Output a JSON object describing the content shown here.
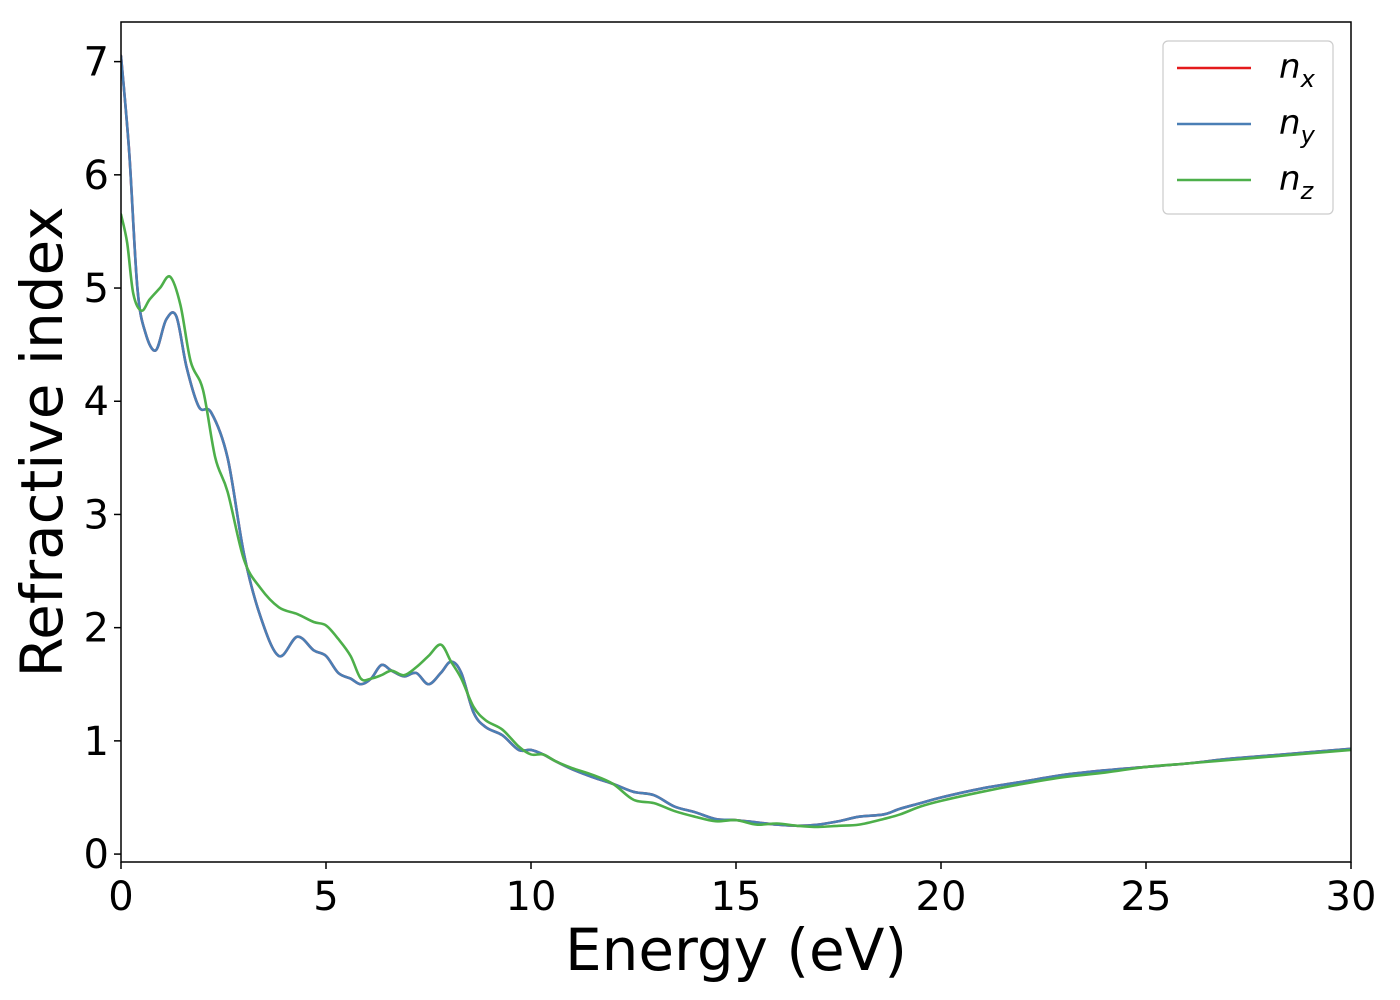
{
  "chart_data": {
    "type": "line",
    "title": "",
    "xlabel": "Energy (eV)",
    "ylabel": "Refractive index",
    "xlim": [
      0,
      30
    ],
    "ylim": [
      -0.07,
      7.35
    ],
    "xticks": [
      0,
      5,
      10,
      15,
      20,
      25,
      30
    ],
    "yticks": [
      0,
      1,
      2,
      3,
      4,
      5,
      6,
      7
    ],
    "grid": false,
    "legend_position": "top-right",
    "series": [
      {
        "name": "n",
        "subscript": "x",
        "color": "#e41a1c",
        "x": [
          0.0,
          0.2,
          0.4,
          0.6,
          0.85,
          1.1,
          1.35,
          1.6,
          1.9,
          2.2,
          2.6,
          3.0,
          3.4,
          3.85,
          4.3,
          4.7,
          5.0,
          5.3,
          5.6,
          5.85,
          6.1,
          6.35,
          6.6,
          6.9,
          7.2,
          7.5,
          7.8,
          8.05,
          8.3,
          8.6,
          8.9,
          9.3,
          9.7,
          10.0,
          10.3,
          10.6,
          11.0,
          11.5,
          12.0,
          12.5,
          13.0,
          13.5,
          14.0,
          14.5,
          15.0,
          15.5,
          16.0,
          16.5,
          17.0,
          17.5,
          18.0,
          18.6,
          19.0,
          19.5,
          20.0,
          21.0,
          22.0,
          23.0,
          24.0,
          25.0,
          26.0,
          27.0,
          28.0,
          29.0,
          30.0
        ],
        "values": [
          7.05,
          6.2,
          5.0,
          4.6,
          4.45,
          4.72,
          4.75,
          4.3,
          3.95,
          3.9,
          3.5,
          2.65,
          2.1,
          1.75,
          1.92,
          1.8,
          1.75,
          1.6,
          1.55,
          1.5,
          1.55,
          1.67,
          1.62,
          1.57,
          1.6,
          1.5,
          1.6,
          1.7,
          1.6,
          1.25,
          1.12,
          1.05,
          0.92,
          0.92,
          0.88,
          0.82,
          0.75,
          0.68,
          0.62,
          0.55,
          0.52,
          0.42,
          0.37,
          0.31,
          0.3,
          0.28,
          0.26,
          0.25,
          0.26,
          0.29,
          0.33,
          0.35,
          0.4,
          0.45,
          0.5,
          0.58,
          0.64,
          0.7,
          0.74,
          0.77,
          0.8,
          0.84,
          0.87,
          0.9,
          0.93
        ]
      },
      {
        "name": "n",
        "subscript": "y",
        "color": "#4a7fb5",
        "x": [
          0.0,
          0.2,
          0.4,
          0.6,
          0.85,
          1.1,
          1.35,
          1.6,
          1.9,
          2.2,
          2.6,
          3.0,
          3.4,
          3.85,
          4.3,
          4.7,
          5.0,
          5.3,
          5.6,
          5.85,
          6.1,
          6.35,
          6.6,
          6.9,
          7.2,
          7.5,
          7.8,
          8.05,
          8.3,
          8.6,
          8.9,
          9.3,
          9.7,
          10.0,
          10.3,
          10.6,
          11.0,
          11.5,
          12.0,
          12.5,
          13.0,
          13.5,
          14.0,
          14.5,
          15.0,
          15.5,
          16.0,
          16.5,
          17.0,
          17.5,
          18.0,
          18.6,
          19.0,
          19.5,
          20.0,
          21.0,
          22.0,
          23.0,
          24.0,
          25.0,
          26.0,
          27.0,
          28.0,
          29.0,
          30.0
        ],
        "values": [
          7.05,
          6.2,
          5.0,
          4.6,
          4.45,
          4.72,
          4.75,
          4.3,
          3.95,
          3.9,
          3.5,
          2.65,
          2.1,
          1.75,
          1.92,
          1.8,
          1.75,
          1.6,
          1.55,
          1.5,
          1.55,
          1.67,
          1.62,
          1.57,
          1.6,
          1.5,
          1.6,
          1.7,
          1.6,
          1.25,
          1.12,
          1.05,
          0.92,
          0.92,
          0.88,
          0.82,
          0.75,
          0.68,
          0.62,
          0.55,
          0.52,
          0.42,
          0.37,
          0.31,
          0.3,
          0.28,
          0.26,
          0.25,
          0.26,
          0.29,
          0.33,
          0.35,
          0.4,
          0.45,
          0.5,
          0.58,
          0.64,
          0.7,
          0.74,
          0.77,
          0.8,
          0.84,
          0.87,
          0.9,
          0.93
        ]
      },
      {
        "name": "n",
        "subscript": "z",
        "color": "#4daf4a",
        "x": [
          0.0,
          0.15,
          0.3,
          0.5,
          0.7,
          0.95,
          1.2,
          1.45,
          1.7,
          2.0,
          2.3,
          2.6,
          3.0,
          3.4,
          3.85,
          4.3,
          4.7,
          5.0,
          5.3,
          5.6,
          5.85,
          6.1,
          6.35,
          6.6,
          6.9,
          7.2,
          7.5,
          7.8,
          8.05,
          8.3,
          8.6,
          8.9,
          9.3,
          9.7,
          10.0,
          10.3,
          10.6,
          11.0,
          11.5,
          12.0,
          12.5,
          13.0,
          13.5,
          14.0,
          14.5,
          15.0,
          15.5,
          16.0,
          16.5,
          17.0,
          17.5,
          18.0,
          18.6,
          19.0,
          19.5,
          20.0,
          21.0,
          22.0,
          23.0,
          24.0,
          25.0,
          26.0,
          27.0,
          28.0,
          29.0,
          30.0
        ],
        "values": [
          5.65,
          5.4,
          4.95,
          4.8,
          4.9,
          5.0,
          5.1,
          4.85,
          4.35,
          4.1,
          3.5,
          3.2,
          2.6,
          2.35,
          2.18,
          2.12,
          2.05,
          2.02,
          1.9,
          1.75,
          1.55,
          1.55,
          1.58,
          1.62,
          1.58,
          1.65,
          1.75,
          1.85,
          1.7,
          1.55,
          1.3,
          1.18,
          1.1,
          0.95,
          0.88,
          0.88,
          0.82,
          0.76,
          0.7,
          0.62,
          0.48,
          0.45,
          0.38,
          0.33,
          0.29,
          0.3,
          0.26,
          0.27,
          0.25,
          0.24,
          0.25,
          0.26,
          0.31,
          0.35,
          0.42,
          0.47,
          0.55,
          0.62,
          0.68,
          0.72,
          0.77,
          0.8,
          0.83,
          0.86,
          0.89,
          0.92
        ]
      }
    ]
  }
}
